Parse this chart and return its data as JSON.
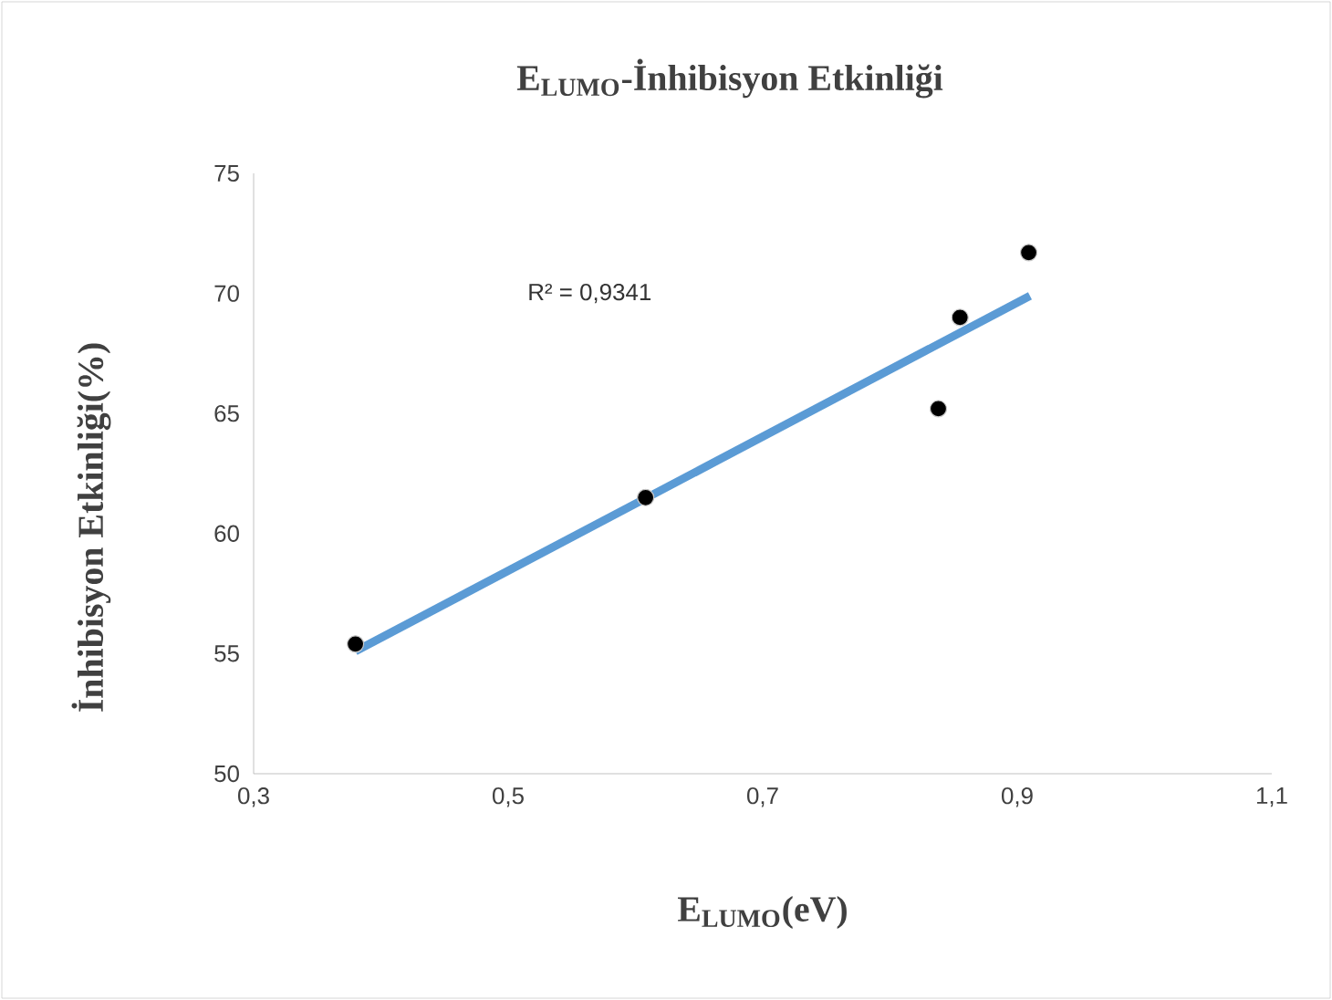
{
  "chart_data": {
    "type": "scatter",
    "title": "E$_{LUMO}$-İnhibisyon Etkinliği",
    "xlabel": "E$_{LUMO}$(eV)",
    "ylabel": "İnhibisyon Etkinliği(%)",
    "annotations": [
      "R² = 0,9341"
    ],
    "xlim": [
      0.3,
      1.1
    ],
    "xticks": [
      {
        "value": 0.3,
        "label": "0,3"
      },
      {
        "value": 0.5,
        "label": "0,5"
      },
      {
        "value": 0.7,
        "label": "0,7"
      },
      {
        "value": 0.9,
        "label": "0,9"
      },
      {
        "value": 1.1,
        "label": "1,1"
      }
    ],
    "ylim": [
      50,
      75
    ],
    "yticks": [
      50,
      55,
      60,
      65,
      70,
      75
    ],
    "marker": "circle",
    "series": [
      {
        "type": "line",
        "color": "#5b9bd5",
        "x": [
          0.38,
          0.91
        ],
        "values": [
          55.1,
          69.9
        ],
        "marker": "none"
      },
      {
        "color": "#000000",
        "x": [
          0.38,
          0.608,
          0.838,
          0.855,
          0.909
        ],
        "values": [
          55.4,
          61.5,
          65.2,
          69.0,
          71.7
        ]
      }
    ]
  }
}
